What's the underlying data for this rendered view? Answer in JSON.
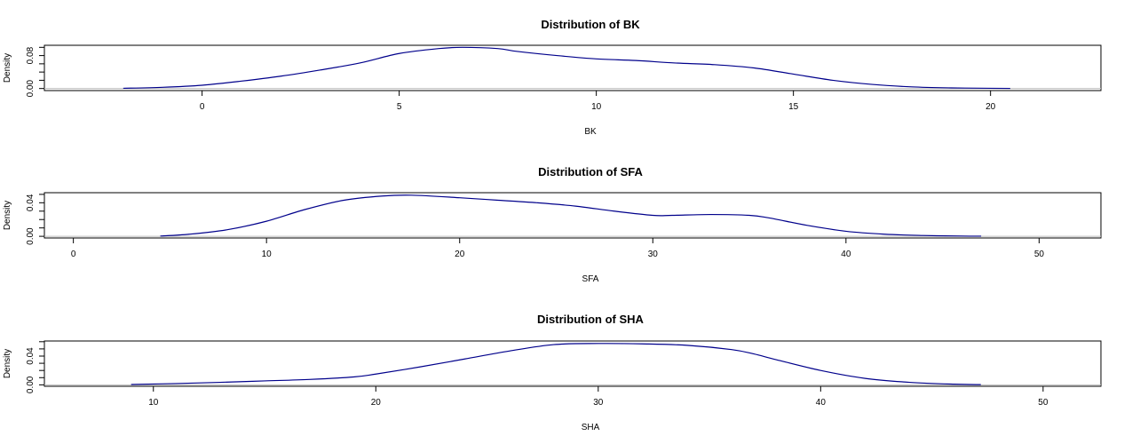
{
  "chart_data": [
    {
      "type": "line",
      "title": "Distribution of BK",
      "xlabel": "BK",
      "ylabel": "Density",
      "xlim": [
        -4,
        22.8
      ],
      "ylim": [
        -0.005,
        0.105
      ],
      "xticks": [
        0,
        5,
        10,
        15,
        20
      ],
      "xtick_labels": [
        "0",
        "5",
        "10",
        "15",
        "20"
      ],
      "yticks": [
        0,
        0.02,
        0.04,
        0.06,
        0.08,
        0.1
      ],
      "ytick_labels": [
        "0.00",
        "",
        "",
        "",
        "0.08",
        ""
      ],
      "grid": false,
      "line_color": "#00008b",
      "series": [
        {
          "x": [
            -2,
            -1,
            0,
            1,
            2,
            3,
            4,
            5,
            6,
            6.6,
            7.5,
            8,
            9,
            10,
            11,
            12,
            13,
            14,
            15,
            16,
            17,
            18,
            19,
            20,
            20.5
          ],
          "values": [
            0.0005,
            0.003,
            0.008,
            0.018,
            0.03,
            0.045,
            0.062,
            0.085,
            0.097,
            0.1,
            0.097,
            0.09,
            0.08,
            0.072,
            0.068,
            0.062,
            0.058,
            0.05,
            0.035,
            0.02,
            0.01,
            0.004,
            0.0015,
            0.0005,
            0.0003
          ]
        }
      ]
    },
    {
      "type": "line",
      "title": "Distribution of SFA",
      "xlabel": "SFA",
      "ylabel": "Density",
      "xlim": [
        -1.5,
        53.2
      ],
      "ylim": [
        -0.002,
        0.052
      ],
      "xticks": [
        0,
        10,
        20,
        30,
        40,
        50
      ],
      "xtick_labels": [
        "0",
        "10",
        "20",
        "30",
        "40",
        "50"
      ],
      "yticks": [
        0,
        0.01,
        0.02,
        0.03,
        0.04,
        0.05
      ],
      "ytick_labels": [
        "0.00",
        "",
        "",
        "",
        "0.04",
        ""
      ],
      "grid": false,
      "line_color": "#00008b",
      "series": [
        {
          "x": [
            4.5,
            6,
            8,
            10,
            12,
            14,
            16,
            17.5,
            20,
            22,
            24,
            26,
            28,
            30,
            31,
            33,
            35,
            36,
            38,
            40,
            42,
            44,
            46,
            47
          ],
          "values": [
            0.0003,
            0.0025,
            0.008,
            0.018,
            0.032,
            0.043,
            0.048,
            0.049,
            0.046,
            0.043,
            0.04,
            0.036,
            0.03,
            0.025,
            0.025,
            0.026,
            0.025,
            0.022,
            0.013,
            0.006,
            0.0025,
            0.001,
            0.0003,
            0.0002
          ]
        }
      ]
    },
    {
      "type": "line",
      "title": "Distribution of SHA",
      "xlabel": "SHA",
      "ylabel": "Density",
      "xlim": [
        5.1,
        52.6
      ],
      "ylim": [
        -0.002,
        0.061
      ],
      "xticks": [
        10,
        20,
        30,
        40,
        50
      ],
      "xtick_labels": [
        "10",
        "20",
        "30",
        "40",
        "50"
      ],
      "yticks": [
        0,
        0.01,
        0.02,
        0.03,
        0.04,
        0.05,
        0.06
      ],
      "ytick_labels": [
        "0.00",
        "",
        "",
        "",
        "0.04",
        "",
        ""
      ],
      "grid": false,
      "line_color": "#00008b",
      "series": [
        {
          "x": [
            9,
            11,
            13,
            15,
            17,
            19,
            20,
            22,
            24,
            26,
            28,
            30,
            32,
            34,
            36,
            37,
            38,
            40,
            42,
            44,
            46,
            47.2
          ],
          "values": [
            0.0005,
            0.0018,
            0.0035,
            0.0055,
            0.0075,
            0.011,
            0.015,
            0.025,
            0.036,
            0.047,
            0.056,
            0.0575,
            0.057,
            0.055,
            0.049,
            0.043,
            0.035,
            0.02,
            0.009,
            0.0035,
            0.0009,
            0.0003
          ]
        }
      ]
    }
  ]
}
